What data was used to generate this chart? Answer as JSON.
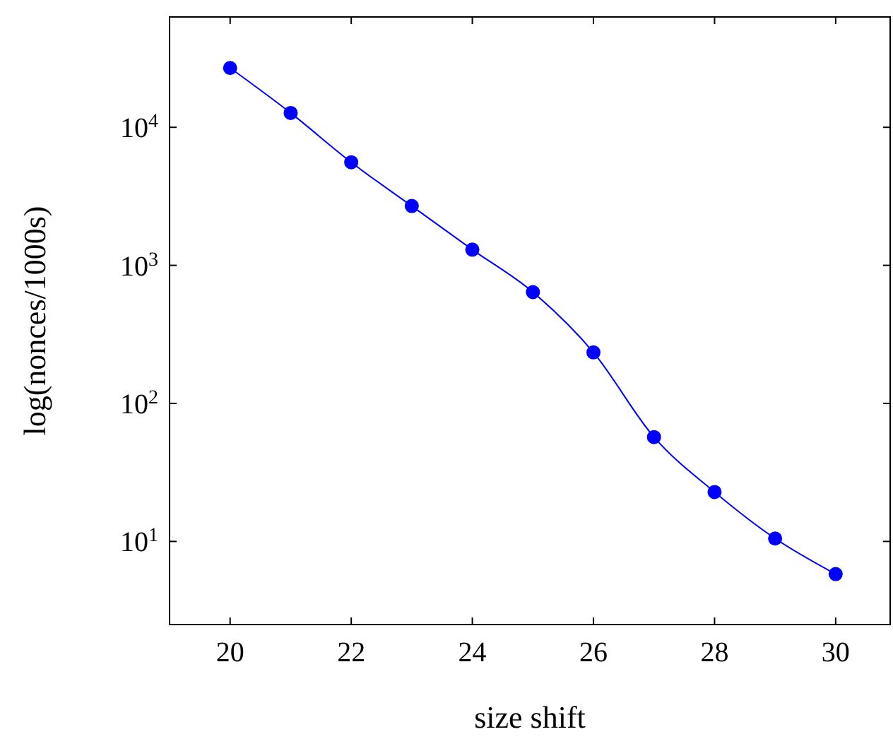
{
  "chart_data": {
    "type": "line",
    "xlabel": "size shift",
    "ylabel": "log(nonces/1000s)",
    "x": [
      20,
      21,
      22,
      23,
      24,
      25,
      26,
      27,
      28,
      29,
      30
    ],
    "series": [
      {
        "color": "#0000ff",
        "values": [
          26900,
          12700,
          5580,
          2690,
          1300,
          640,
          234,
          57,
          22.8,
          10.5,
          5.8
        ]
      }
    ],
    "xlim": [
      19,
      30.9
    ],
    "xticks": [
      20,
      22,
      24,
      26,
      28,
      30
    ],
    "ylim": [
      2.5,
      63000
    ],
    "yticks": [
      {
        "value": 10,
        "label": "10$^{1}$"
      },
      {
        "value": 100,
        "label": "10$^{2}$"
      },
      {
        "value": 1000,
        "label": "10$^{3}$"
      },
      {
        "value": 10000,
        "label": "10$^{4}$"
      }
    ],
    "log": "y",
    "grid": false,
    "marker": "circle",
    "line_style": "solid"
  }
}
